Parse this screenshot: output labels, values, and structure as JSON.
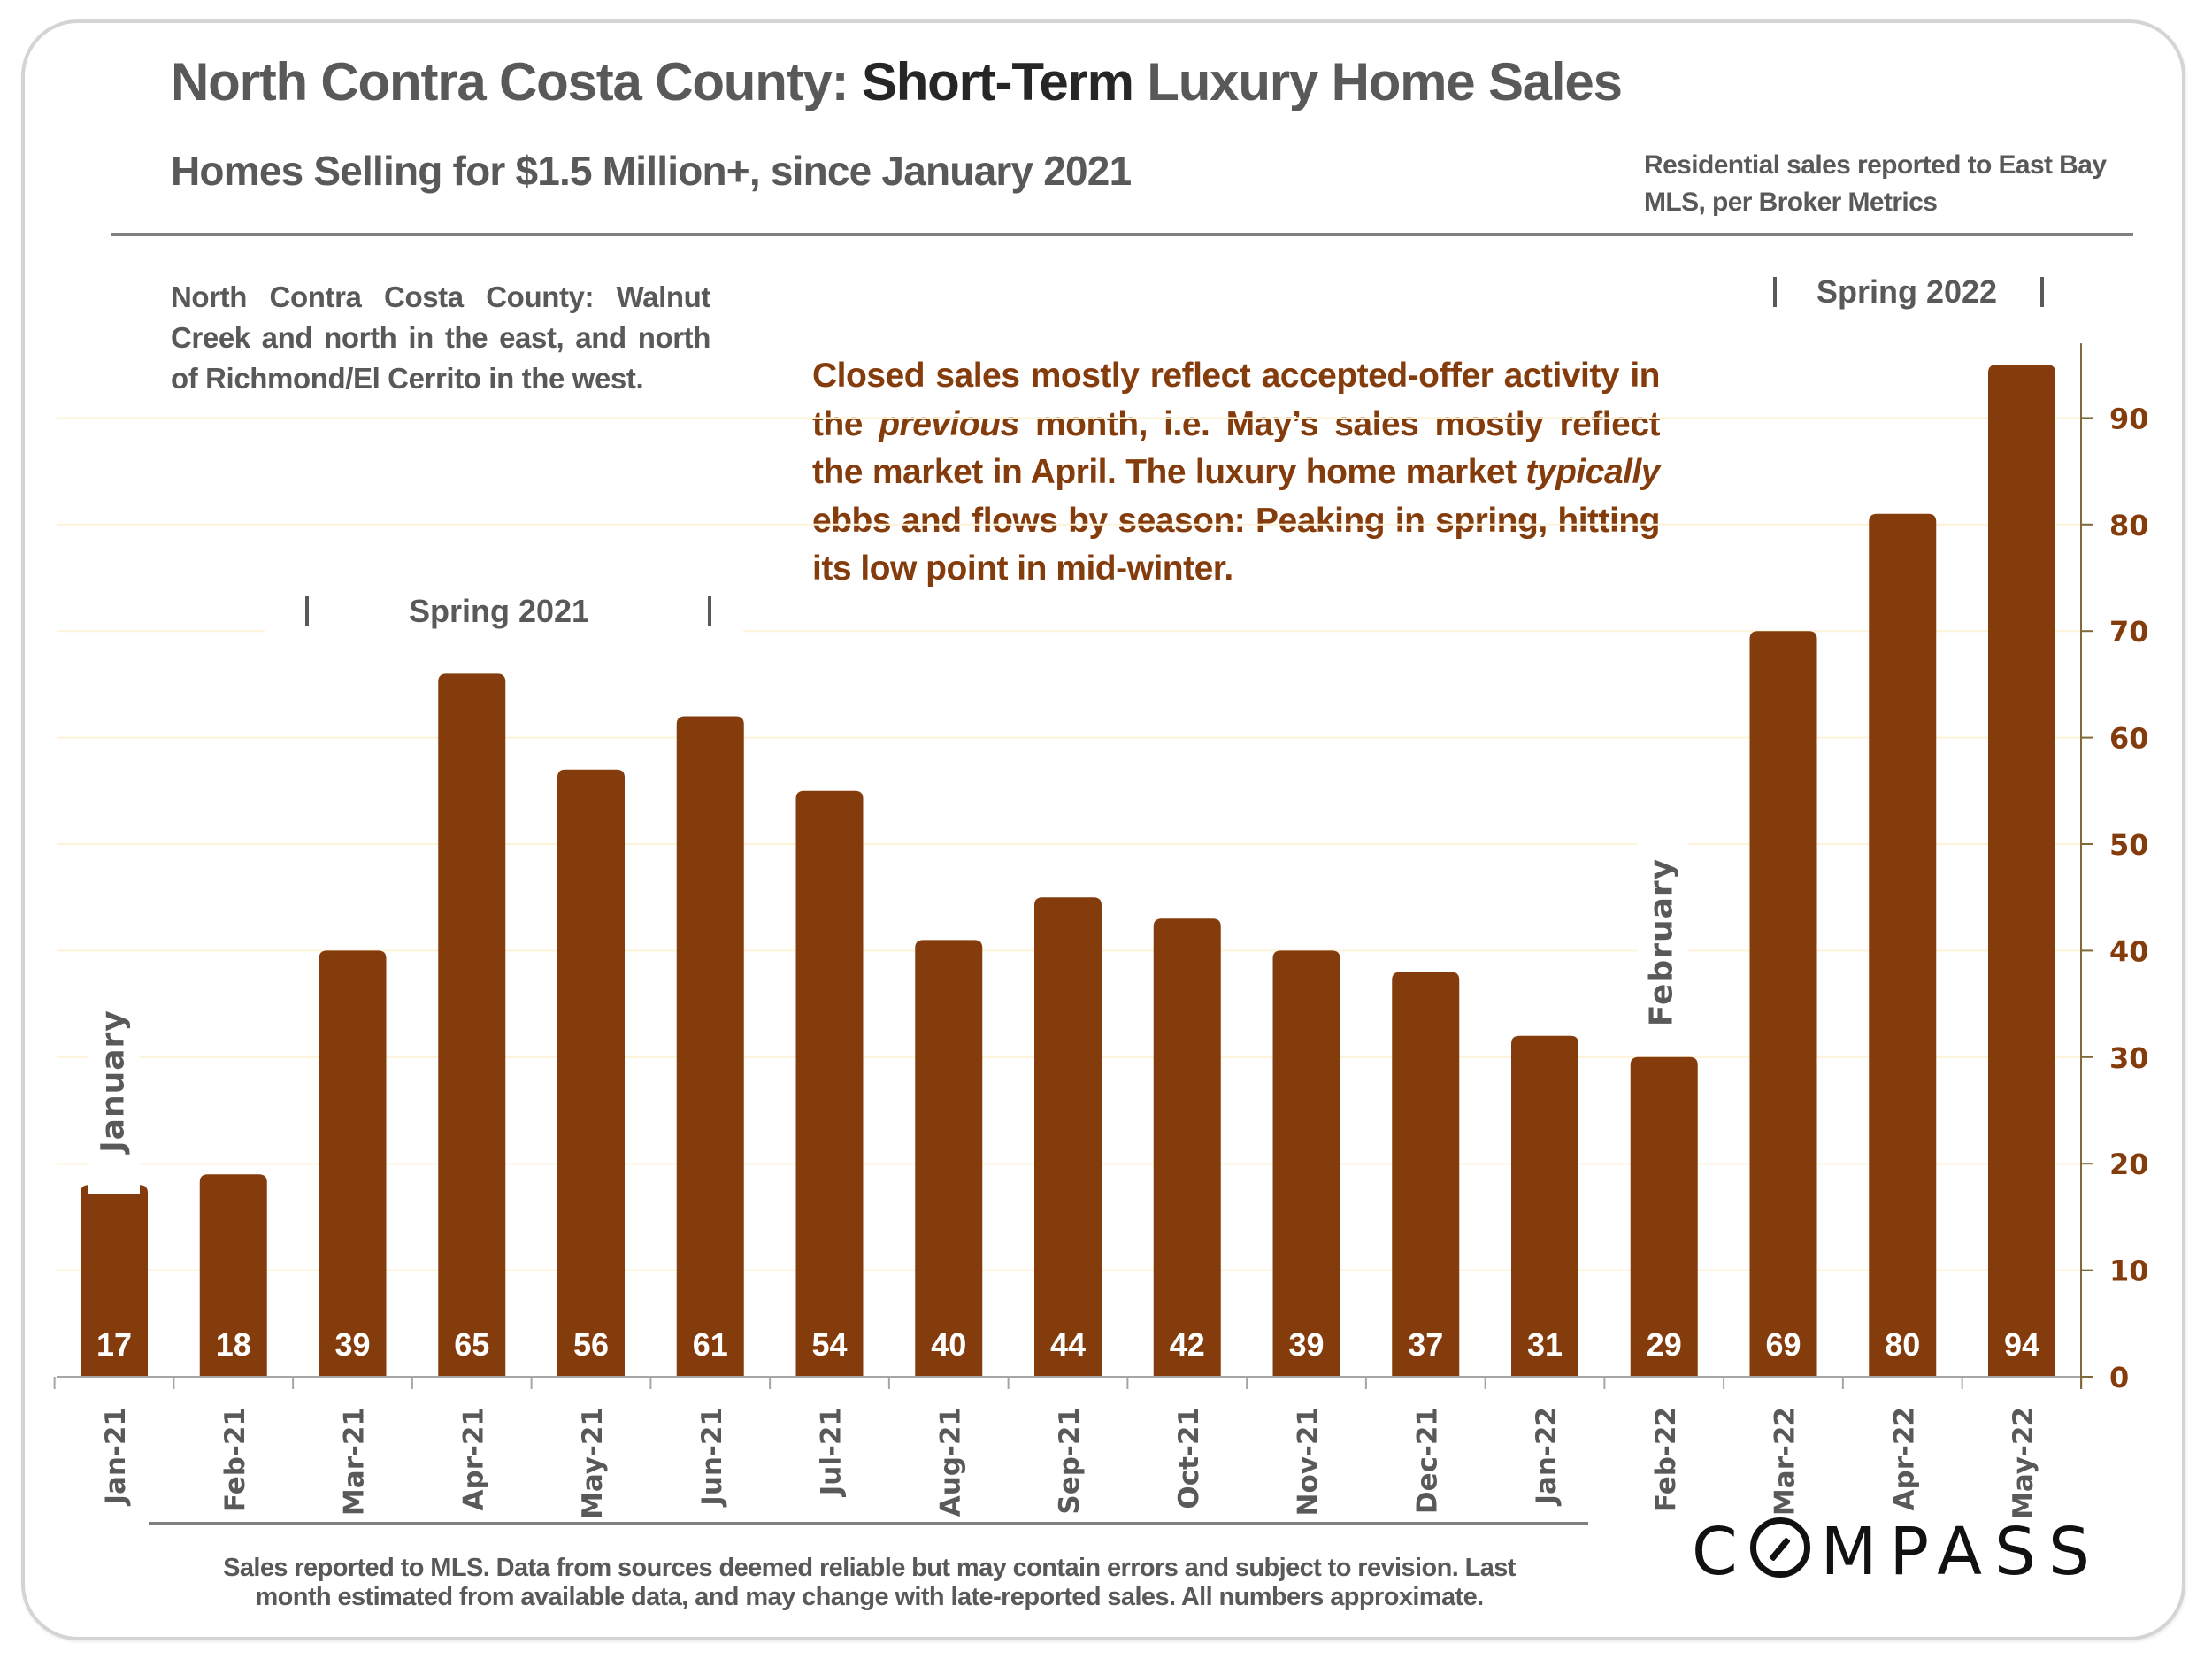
{
  "header": {
    "title_prefix": "North Contra Costa County: ",
    "title_emphasis": "Short-Term",
    "title_suffix": " Luxury Home Sales",
    "subtitle": "Homes Selling for $1.5 Million+, since January 2021",
    "source_note": "Residential sales reported to East Bay MLS, per Broker Metrics"
  },
  "region_note": "North Contra Costa County: Walnut Creek and north in the east, and north of Richmond/El Cerrito in the west.",
  "annotation": {
    "part1": "Closed sales mostly reflect accepted-offer activity in the ",
    "italic1": "previous",
    "part2": " month, i.e. May’s sales mostly reflect the market in April. The luxury home market ",
    "italic2": "typically",
    "part3": " ebbs and flows by season: Peaking in spring, hitting its low point in mid-winter."
  },
  "seasons": {
    "spring_2021": "Spring 2021",
    "spring_2022": "Spring 2022",
    "divider": "|"
  },
  "callouts": {
    "january": "January",
    "february": "February"
  },
  "footer": {
    "line1": "Sales reported to MLS. Data from sources deemed reliable but may contain errors and subject to revision.  Last",
    "line2": "month estimated from available data, and may change with late-reported sales. All numbers approximate.",
    "logo": "COMPASS"
  },
  "colors": {
    "bar": "#843c0c",
    "axis_text": "#843c0c",
    "label_text": "#595959",
    "bar_label": "#ffffff",
    "gridline": "#fdf3d9"
  },
  "chart_data": {
    "type": "bar",
    "title": "North Contra Costa County: Short-Term Luxury Home Sales",
    "subtitle": "Homes Selling for $1.5 Million+, since January 2021",
    "xlabel": "",
    "ylabel": "",
    "categories": [
      "Jan-21",
      "Feb-21",
      "Mar-21",
      "Apr-21",
      "May-21",
      "Jun-21",
      "Jul-21",
      "Aug-21",
      "Sep-21",
      "Oct-21",
      "Nov-21",
      "Dec-21",
      "Jan-22",
      "Feb-22",
      "Mar-22",
      "Apr-22",
      "May-22"
    ],
    "values": [
      17,
      18,
      39,
      65,
      56,
      61,
      54,
      40,
      44,
      42,
      39,
      37,
      31,
      29,
      69,
      80,
      94
    ],
    "ylim": [
      0,
      97
    ],
    "yticks": [
      0,
      10,
      20,
      30,
      40,
      50,
      60,
      70,
      80,
      90
    ],
    "yaxis_side": "right",
    "grid": true,
    "data_labels": "inside-base",
    "legend": "none"
  }
}
